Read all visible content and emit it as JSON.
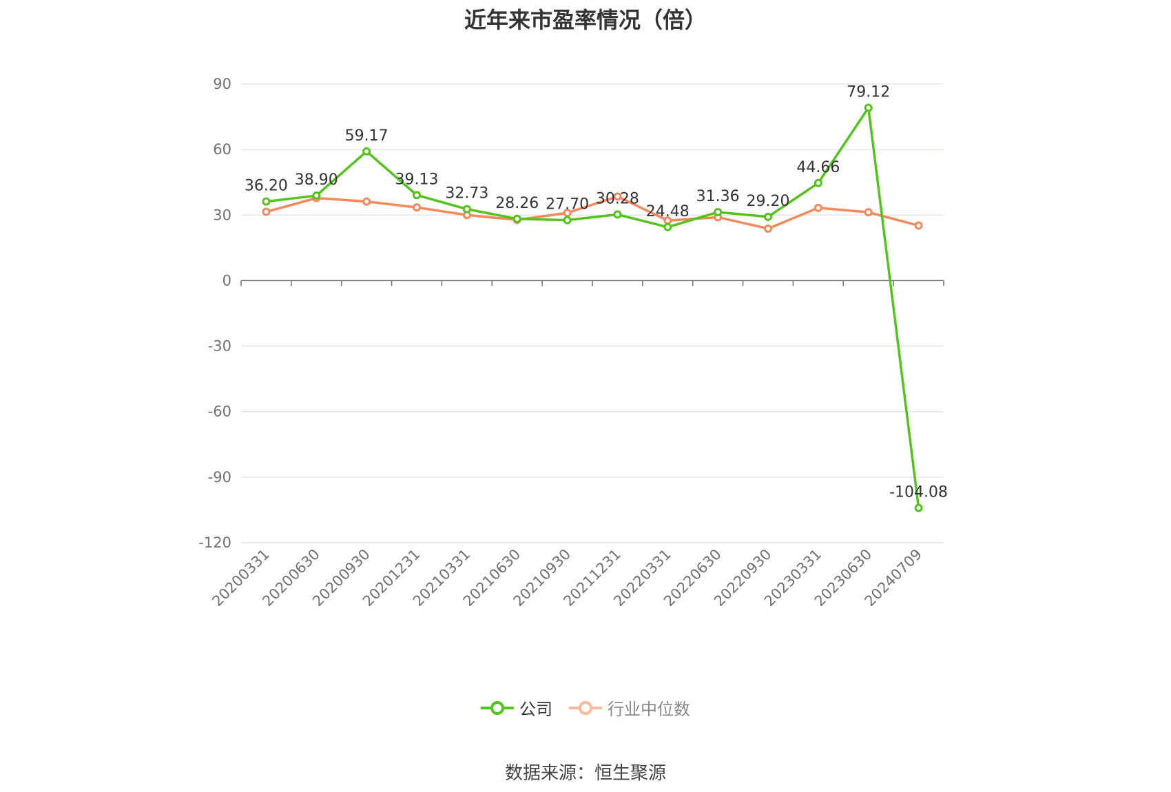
{
  "chart_data": {
    "type": "line",
    "title": "近年来市盈率情况（倍）",
    "categories": [
      "20200331",
      "20200630",
      "20200930",
      "20201231",
      "20210331",
      "20210630",
      "20210930",
      "20211231",
      "20220331",
      "20220630",
      "20220930",
      "20230331",
      "20230630",
      "20240709"
    ],
    "series": [
      {
        "name": "公司",
        "color": "#52c41a",
        "values": [
          36.2,
          38.9,
          59.17,
          39.13,
          32.73,
          28.26,
          27.7,
          30.28,
          24.48,
          31.36,
          29.2,
          44.66,
          79.12,
          -104.08
        ],
        "labels": [
          "36.20",
          "38.90",
          "59.17",
          "39.13",
          "32.73",
          "28.26",
          "27.70",
          "30.28",
          "24.48",
          "31.36",
          "29.20",
          "44.66",
          "79.12",
          "-104.08"
        ]
      },
      {
        "name": "行业中位数",
        "color": "#f5885a",
        "values": [
          31.5,
          37.8,
          36.2,
          33.5,
          30.0,
          27.8,
          31.0,
          38.5,
          27.5,
          29.0,
          23.8,
          33.3,
          31.3,
          25.2
        ]
      }
    ],
    "yticks": [
      90,
      60,
      30,
      0,
      -30,
      -60,
      -90,
      -120
    ],
    "ylim": [
      -120,
      90
    ],
    "grid": true,
    "legend_position": "bottom"
  },
  "source_text": "数据来源：恒生聚源"
}
